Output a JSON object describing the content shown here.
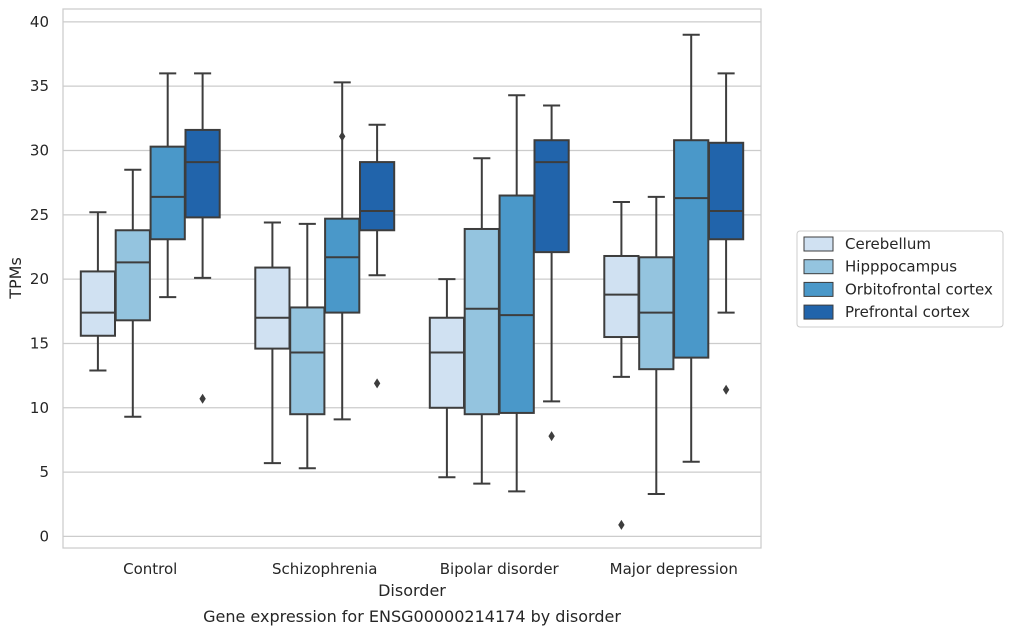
{
  "chart_data": {
    "type": "box",
    "caption": "Gene expression for ENSG00000214174 by disorder",
    "xlabel": "Disorder",
    "ylabel": "TPMs",
    "ylim": [
      -0.9,
      41
    ],
    "yticks": [
      0,
      5,
      10,
      15,
      20,
      25,
      30,
      35,
      40
    ],
    "grid": "horizontal",
    "legend_position": "right",
    "categories": [
      "Control",
      "Schizophrenia",
      "Bipolar disorder",
      "Major depression"
    ],
    "series": [
      {
        "name": "Cerebellum",
        "color": "#d0e1f2",
        "boxes": [
          {
            "whislo": 12.9,
            "q1": 15.6,
            "med": 17.4,
            "q3": 20.6,
            "whishi": 25.2,
            "fliers": []
          },
          {
            "whislo": 5.7,
            "q1": 14.6,
            "med": 17.0,
            "q3": 20.9,
            "whishi": 24.4,
            "fliers": []
          },
          {
            "whislo": 4.6,
            "q1": 10.0,
            "med": 14.3,
            "q3": 17.0,
            "whishi": 20.0,
            "fliers": []
          },
          {
            "whislo": 12.4,
            "q1": 15.5,
            "med": 18.8,
            "q3": 21.8,
            "whishi": 26.0,
            "fliers": [
              0.9
            ]
          }
        ]
      },
      {
        "name": "Hipppocampus",
        "color": "#94c4df",
        "boxes": [
          {
            "whislo": 9.3,
            "q1": 16.8,
            "med": 21.3,
            "q3": 23.8,
            "whishi": 28.5,
            "fliers": []
          },
          {
            "whislo": 5.3,
            "q1": 9.5,
            "med": 14.3,
            "q3": 17.8,
            "whishi": 24.3,
            "fliers": []
          },
          {
            "whislo": 4.1,
            "q1": 9.5,
            "med": 17.7,
            "q3": 23.9,
            "whishi": 29.4,
            "fliers": []
          },
          {
            "whislo": 3.3,
            "q1": 13.0,
            "med": 17.4,
            "q3": 21.7,
            "whishi": 26.4,
            "fliers": []
          }
        ]
      },
      {
        "name": "Orbitofrontal cortex",
        "color": "#4a98c9",
        "boxes": [
          {
            "whislo": 18.6,
            "q1": 23.1,
            "med": 26.4,
            "q3": 30.3,
            "whishi": 36.0,
            "fliers": []
          },
          {
            "whislo": 9.1,
            "q1": 17.4,
            "med": 21.7,
            "q3": 24.7,
            "whishi": 35.3,
            "fliers": [
              31.1
            ]
          },
          {
            "whislo": 3.5,
            "q1": 9.6,
            "med": 17.2,
            "q3": 26.5,
            "whishi": 34.3,
            "fliers": []
          },
          {
            "whislo": 5.8,
            "q1": 13.9,
            "med": 26.3,
            "q3": 30.8,
            "whishi": 39.0,
            "fliers": []
          }
        ]
      },
      {
        "name": "Prefrontal cortex",
        "color": "#2164ab",
        "boxes": [
          {
            "whislo": 20.1,
            "q1": 24.8,
            "med": 29.1,
            "q3": 31.6,
            "whishi": 36.0,
            "fliers": [
              10.7
            ]
          },
          {
            "whislo": 20.3,
            "q1": 23.8,
            "med": 25.3,
            "q3": 29.1,
            "whishi": 32.0,
            "fliers": [
              11.9
            ]
          },
          {
            "whislo": 10.5,
            "q1": 22.1,
            "med": 29.1,
            "q3": 30.8,
            "whishi": 33.5,
            "fliers": [
              7.8
            ]
          },
          {
            "whislo": 17.4,
            "q1": 23.1,
            "med": 25.3,
            "q3": 30.6,
            "whishi": 36.0,
            "fliers": [
              11.4
            ]
          }
        ]
      }
    ]
  }
}
